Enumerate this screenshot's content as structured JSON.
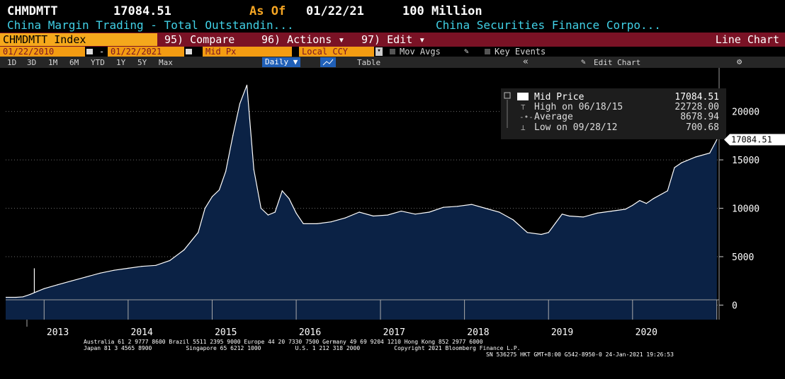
{
  "header": {
    "ticker": "CHMDMTT",
    "last_value": "17084.51",
    "as_of_label": "As Of",
    "as_of_date": "01/22/21",
    "unit": "100 Million",
    "security_name": "China Margin Trading - Total Outstandin...",
    "source_name": "China Securities Finance Corpo..."
  },
  "command_bar": {
    "index_field": "CHMDMTT Index",
    "compare": "95) Compare",
    "actions": "96) Actions ▾",
    "edit": "97) Edit ▾",
    "view_type": "Line Chart"
  },
  "controls": {
    "start_date": "01/22/2010",
    "separator": "-",
    "end_date": "01/22/2021",
    "price_field": "Mid Px",
    "currency": "Local CCY",
    "mov_avgs": "Mov Avgs",
    "key_events": "Key Events"
  },
  "toolbar": {
    "ranges": [
      "1D",
      "3D",
      "1M",
      "6M",
      "YTD",
      "1Y",
      "5Y",
      "Max"
    ],
    "frequency": "Daily ▼",
    "table": "Table",
    "collapse": "«",
    "edit_chart": "Edit Chart",
    "settings_icon": "gear-icon"
  },
  "legend": {
    "mid_price_label": "Mid Price",
    "mid_price_value": "17084.51",
    "high_label": "High on 06/18/15",
    "high_value": "22728.00",
    "average_label": "Average",
    "average_value": "8678.94",
    "low_label": "Low on 09/28/12",
    "low_value": "700.68"
  },
  "last_price_tag": "17084.51",
  "footer": {
    "line1": "Australia 61 2 9777 8600 Brazil 5511 2395 9000 Europe 44 20 7330 7500 Germany 49 69 9204 1210 Hong Kong 852 2977 6000",
    "line2": "Japan 81 3 4565 8900          Singapore 65 6212 1000          U.S. 1 212 318 2000          Copyright 2021 Bloomberg Finance L.P.",
    "line3": "SN 536275 HKT  GMT+8:00 G542-8950-0 24-Jan-2021 19:26:53"
  },
  "colors": {
    "background": "#000000",
    "area_fill": "#0b2245",
    "line": "#ffffff",
    "title_cyan": "#41d1e6",
    "command_bar": "#7a1225",
    "amber": "#f5a81c"
  },
  "chart_data": {
    "type": "area",
    "title": "",
    "xlabel": "",
    "ylabel": "",
    "x_tick_labels": [
      "2013",
      "2014",
      "2015",
      "2016",
      "2017",
      "2018",
      "2019",
      "2020"
    ],
    "y_ticks": [
      0,
      5000,
      10000,
      15000,
      20000
    ],
    "ylim": [
      -1500,
      24500
    ],
    "grid": true,
    "legend_position": "top-right",
    "series": [
      {
        "name": "Mid Price",
        "x": [
          "2012-09",
          "2012-10",
          "2012-11",
          "2012-12",
          "2013-01",
          "2013-03",
          "2013-05",
          "2013-07",
          "2013-09",
          "2013-11",
          "2014-01",
          "2014-03",
          "2014-05",
          "2014-07",
          "2014-09",
          "2014-11",
          "2014-12",
          "2015-01",
          "2015-02",
          "2015-03",
          "2015-04",
          "2015-05",
          "2015-06",
          "2015-07",
          "2015-08",
          "2015-09",
          "2015-10",
          "2015-11",
          "2015-12",
          "2016-01",
          "2016-02",
          "2016-04",
          "2016-06",
          "2016-08",
          "2016-10",
          "2016-12",
          "2017-02",
          "2017-04",
          "2017-06",
          "2017-08",
          "2017-10",
          "2017-12",
          "2018-02",
          "2018-04",
          "2018-06",
          "2018-08",
          "2018-10",
          "2018-12",
          "2019-01",
          "2019-02",
          "2019-03",
          "2019-04",
          "2019-06",
          "2019-08",
          "2019-10",
          "2019-12",
          "2020-01",
          "2020-02",
          "2020-03",
          "2020-04",
          "2020-06",
          "2020-07",
          "2020-08",
          "2020-10",
          "2020-12",
          "2021-01"
        ],
        "values": [
          800,
          850,
          1100,
          1400,
          1700,
          2100,
          2500,
          2900,
          3300,
          3600,
          3800,
          4000,
          4100,
          4600,
          5700,
          7500,
          10000,
          11200,
          11900,
          13800,
          17500,
          20800,
          22728,
          14000,
          10000,
          9300,
          9600,
          11800,
          11000,
          9500,
          8400,
          8400,
          8600,
          9000,
          9600,
          9200,
          9300,
          9700,
          9400,
          9600,
          10100,
          10200,
          10400,
          10000,
          9600,
          8800,
          7500,
          7300,
          7500,
          8500,
          9400,
          9200,
          9100,
          9500,
          9700,
          9900,
          10300,
          10800,
          10500,
          11000,
          11800,
          14200,
          14700,
          15300,
          15700,
          17084.51
        ]
      }
    ]
  }
}
